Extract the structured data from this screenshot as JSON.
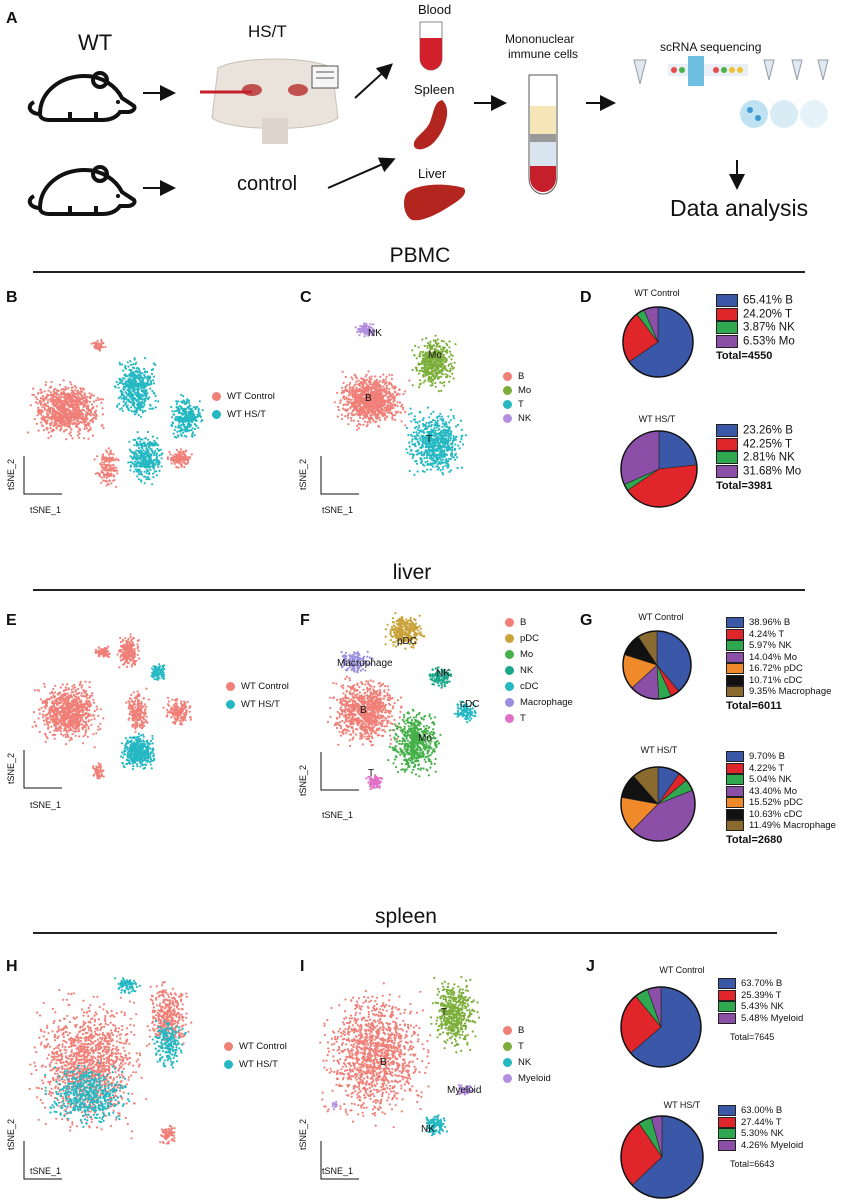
{
  "panels": {
    "a": "A",
    "b": "B",
    "c": "C",
    "d": "D",
    "e": "E",
    "f": "F",
    "g": "G",
    "h": "H",
    "i": "I",
    "j": "J"
  },
  "workflow": {
    "wt": "WT",
    "hst": "HS/T",
    "control": "control",
    "blood": "Blood",
    "spleen": "Spleen",
    "liver": "Liver",
    "mono_line1": "Mononuclear",
    "mono_line2": "immune cells",
    "scrna": "scRNA sequencing",
    "data_analysis": "Data analysis"
  },
  "sections": {
    "pbmc": "PBMC",
    "liver": "liver",
    "spleen": "spleen"
  },
  "axes": {
    "x": "tSNE_1",
    "y": "tSNE_2"
  },
  "condition_legend": {
    "control": "WT Control",
    "hst": "WT HS/T"
  },
  "colors": {
    "wt_control": "#f07f78",
    "wt_hst": "#25b8c2",
    "B": "#3a57a8",
    "T": "#e0262b",
    "NK": "#2fa84f",
    "Mo": "#8b4fa8",
    "pDC": "#f0892a",
    "cDC": "#111111",
    "Macrophage": "#8a6a2e",
    "Myeloid": "#8b4fa8"
  },
  "tsne_legends": {
    "pbmc": [
      {
        "label": "B",
        "color": "#f07f78"
      },
      {
        "label": "Mo",
        "color": "#7cae3a"
      },
      {
        "label": "T",
        "color": "#25b8c2"
      },
      {
        "label": "NK",
        "color": "#b38ee0"
      }
    ],
    "liver": [
      {
        "label": "B",
        "color": "#f07f78"
      },
      {
        "label": "pDC",
        "color": "#c9a23a"
      },
      {
        "label": "Mo",
        "color": "#46b04a"
      },
      {
        "label": "NK",
        "color": "#1aa88a"
      },
      {
        "label": "cDC",
        "color": "#25b8c2"
      },
      {
        "label": "Macrophage",
        "color": "#9a8ee0"
      },
      {
        "label": "T",
        "color": "#e06fc8"
      }
    ],
    "spleen": [
      {
        "label": "B",
        "color": "#f07f78"
      },
      {
        "label": "T",
        "color": "#7cae3a"
      },
      {
        "label": "NK",
        "color": "#25b8c2"
      },
      {
        "label": "Myeloid",
        "color": "#b38ee0"
      }
    ]
  },
  "cluster_labels": {
    "pbmc": [
      "NK",
      "Mo",
      "B",
      "T"
    ],
    "liver": [
      "pDC",
      "Macrophage",
      "NK",
      "cDC",
      "B",
      "Mo",
      "T"
    ],
    "spleen": [
      "T",
      "B",
      "Myeloid",
      "NK"
    ]
  },
  "chart_data": [
    {
      "type": "pie",
      "title": "WT Control",
      "group": "PBMC",
      "total": "Total=4550",
      "labels": [
        "B",
        "T",
        "NK",
        "Mo"
      ],
      "values": [
        65.41,
        24.2,
        3.87,
        6.53
      ],
      "value_text": [
        "65.41%",
        "24.20%",
        "3.87%",
        "6.53%"
      ]
    },
    {
      "type": "pie",
      "title": "WT HS/T",
      "group": "PBMC",
      "total": "Total=3981",
      "labels": [
        "B",
        "T",
        "NK",
        "Mo"
      ],
      "values": [
        23.26,
        42.25,
        2.81,
        31.68
      ],
      "value_text": [
        "23.26%",
        "42.25%",
        "2.81%",
        "31.68%"
      ]
    },
    {
      "type": "pie",
      "title": "WT Control",
      "group": "liver",
      "total": "Total=6011",
      "labels": [
        "B",
        "T",
        "NK",
        "Mo",
        "pDC",
        "cDC",
        "Macrophage"
      ],
      "values": [
        38.96,
        4.24,
        5.97,
        14.04,
        16.72,
        10.71,
        9.35
      ],
      "value_text": [
        "38.96%",
        "4.24%",
        "5.97%",
        "14.04%",
        "16.72%",
        "10.71%",
        "9.35%"
      ]
    },
    {
      "type": "pie",
      "title": "WT HS/T",
      "group": "liver",
      "total": "Total=2680",
      "labels": [
        "B",
        "T",
        "NK",
        "Mo",
        "pDC",
        "cDC",
        "Macrophage"
      ],
      "values": [
        9.7,
        4.22,
        5.04,
        43.4,
        15.52,
        10.63,
        11.49
      ],
      "value_text": [
        "9.70%",
        "4.22%",
        "5.04%",
        "43.40%",
        "15.52%",
        "10.63%",
        "11.49%"
      ]
    },
    {
      "type": "pie",
      "title": "WT Control",
      "group": "spleen",
      "total": "Total=7645",
      "labels": [
        "B",
        "T",
        "NK",
        "Myeloid"
      ],
      "values": [
        63.7,
        25.39,
        5.43,
        5.48
      ],
      "value_text": [
        "63.70%",
        "25.39%",
        "5.43%",
        "5.48%"
      ]
    },
    {
      "type": "pie",
      "title": "WT HS/T",
      "group": "spleen",
      "total": "Total=6643",
      "labels": [
        "B",
        "T",
        "NK",
        "Myeloid"
      ],
      "values": [
        63.0,
        27.44,
        5.3,
        4.26
      ],
      "value_text": [
        "63.00%",
        "27.44%",
        "5.30%",
        "4.26%"
      ]
    }
  ]
}
